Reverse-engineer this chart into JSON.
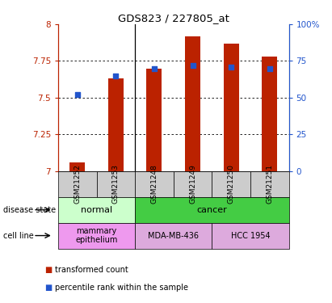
{
  "title": "GDS823 / 227805_at",
  "samples": [
    "GSM21252",
    "GSM21253",
    "GSM21248",
    "GSM21249",
    "GSM21250",
    "GSM21251"
  ],
  "transformed_count": [
    7.06,
    7.63,
    7.7,
    7.92,
    7.87,
    7.78
  ],
  "percentile_rank": [
    52,
    65,
    70,
    72,
    71,
    70
  ],
  "ylim": [
    7.0,
    8.0
  ],
  "yticks": [
    7.0,
    7.25,
    7.5,
    7.75,
    8.0
  ],
  "ytick_labels": [
    "7",
    "7.25",
    "7.5",
    "7.75",
    "8"
  ],
  "right_ylim": [
    0,
    100
  ],
  "right_yticks": [
    0,
    25,
    50,
    75,
    100
  ],
  "right_ytick_labels": [
    "0",
    "25",
    "50",
    "75",
    "100%"
  ],
  "bar_color": "#bb2200",
  "percentile_color": "#2255cc",
  "disease_state": [
    {
      "label": "normal",
      "span": [
        0,
        2
      ],
      "color": "#ccffcc"
    },
    {
      "label": "cancer",
      "span": [
        2,
        6
      ],
      "color": "#44cc44"
    }
  ],
  "cell_line": [
    {
      "label": "mammary\nepithelium",
      "span": [
        0,
        2
      ],
      "color": "#ee99ee"
    },
    {
      "label": "MDA-MB-436",
      "span": [
        2,
        4
      ],
      "color": "#ddaadd"
    },
    {
      "label": "HCC 1954",
      "span": [
        4,
        6
      ],
      "color": "#ddaadd"
    }
  ],
  "legend_red": "transformed count",
  "legend_blue": "percentile rank within the sample",
  "label_disease": "disease state",
  "label_cell": "cell line",
  "bar_width": 0.4
}
